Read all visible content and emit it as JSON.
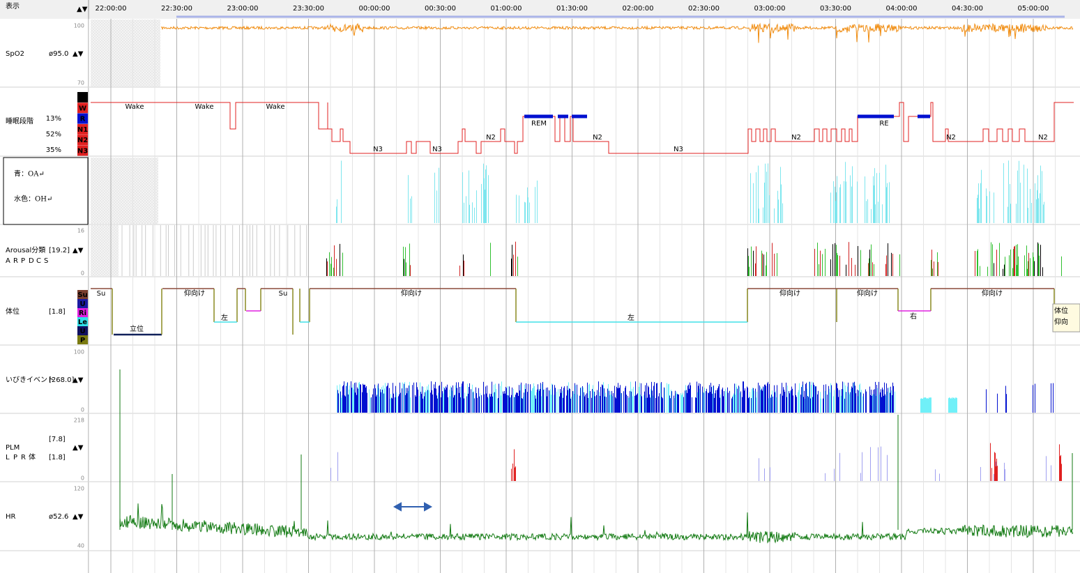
{
  "header": {
    "menu": "表示",
    "sort": "▲▼",
    "times": [
      "22:00:00",
      "22:30:00",
      "23:00:00",
      "23:30:00",
      "00:00:00",
      "00:30:00",
      "01:00:00",
      "01:30:00",
      "02:00:00",
      "02:30:00",
      "03:00:00",
      "03:30:00",
      "04:00:00",
      "04:30:00",
      "05:00:00"
    ]
  },
  "tracks": {
    "spo2": {
      "name": "SpO2",
      "stat": "ø95.0",
      "sort": "▲▼",
      "max": 100,
      "min": 70
    },
    "sleep_stage": {
      "name": "睡眠段階",
      "percents": [
        "13%",
        "52%",
        "35%"
      ],
      "stages": [
        "A",
        "W",
        "R",
        "N1",
        "N2",
        "N3"
      ],
      "labels": [
        "Wake",
        "Wake",
        "Wake",
        "N3",
        "N3",
        "N2",
        "REM",
        "N2",
        "N3",
        "N2",
        "RE",
        "N2",
        "N2"
      ]
    },
    "respiratory_note": {
      "lines": [
        "青：OA↵",
        "水色：OH↵"
      ]
    },
    "arousal": {
      "name": "Arousal分類",
      "stat": "[19.2]",
      "sort": "▲▼",
      "max": 16,
      "min": 0,
      "legend": [
        "A",
        "R",
        "P",
        "D",
        "C",
        "S"
      ]
    },
    "position": {
      "name": "体位",
      "stat": "[1.8]",
      "codes": [
        "Su",
        "U",
        "Ri",
        "Le",
        "U",
        "P"
      ],
      "labels": [
        "Su",
        "立位",
        "仰向け",
        "左",
        "Su",
        "仰向け",
        "左",
        "仰向け",
        "仰向け",
        "右",
        "仰向け"
      ],
      "tooltip": [
        "体位",
        "仰向"
      ]
    },
    "snore": {
      "name": "いびきイベント",
      "stat": "[268.0]",
      "sort": "▲▼",
      "max": 100,
      "min": 0
    },
    "plm": {
      "name": "PLM",
      "stat": "[7.8]",
      "stat2": "[1.8]",
      "sort": "▲▼",
      "legend": [
        "L",
        "P",
        "R",
        "体"
      ],
      "max": 218,
      "min": 0
    },
    "hr": {
      "name": "HR",
      "stat": "ø52.6",
      "sort": "▲▼",
      "max": 120,
      "min": 40
    }
  }
}
